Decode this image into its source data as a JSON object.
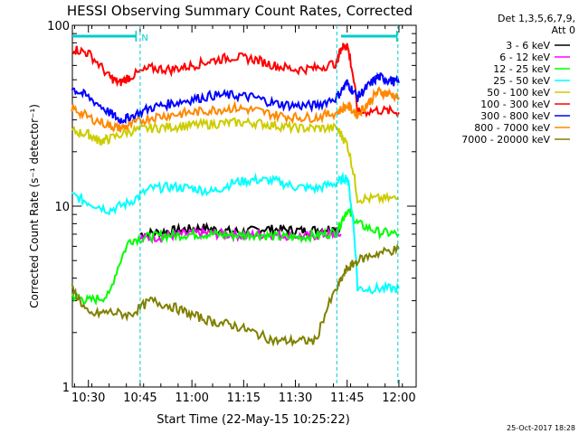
{
  "chart_data": {
    "type": "line",
    "title": "HESSI Observing Summary Count Rates, Corrected",
    "xlabel": "Start Time (22-May-15 10:25:22)",
    "ylabel": "Corrected Count Rate (s⁻¹ detector⁻¹)",
    "xlim": [
      10.4225,
      12.0833
    ],
    "ylim": [
      1,
      100
    ],
    "yscale": "log",
    "x_ticks": [
      {
        "value": 10.5,
        "label": "10:30"
      },
      {
        "value": 10.75,
        "label": "10:45"
      },
      {
        "value": 11.0,
        "label": "11:00"
      },
      {
        "value": 11.25,
        "label": "11:15"
      },
      {
        "value": 11.5,
        "label": "11:30"
      },
      {
        "value": 11.75,
        "label": "11:45"
      },
      {
        "value": 12.0,
        "label": "12:00"
      }
    ],
    "y_ticks": [
      {
        "value": 1,
        "label": "1"
      },
      {
        "value": 10,
        "label": "10"
      },
      {
        "value": 100,
        "label": "100"
      }
    ],
    "legend_header": [
      "Det 1,3,5,6,7,9,",
      "Att 0"
    ],
    "legend_position": "right",
    "night_markers": [
      10.75,
      11.7,
      11.995
    ],
    "flag_bars": [
      {
        "start": 10.4225,
        "end": 10.73,
        "label": "N"
      },
      {
        "start": 11.72,
        "end": 11.99,
        "label": ""
      }
    ],
    "series": [
      {
        "name": "3 - 6 keV",
        "color": "#000000",
        "x": [
          10.75,
          10.85,
          10.95,
          11.05,
          11.15,
          11.25,
          11.35,
          11.45,
          11.55,
          11.65,
          11.72
        ],
        "y": [
          7.0,
          7.2,
          7.4,
          7.6,
          7.3,
          7.2,
          7.5,
          7.4,
          7.3,
          7.5,
          7.6
        ]
      },
      {
        "name": "6 - 12 keV",
        "color": "#ff00ff",
        "x": [
          10.75,
          10.85,
          10.95,
          11.05,
          11.15,
          11.25,
          11.35,
          11.45,
          11.55,
          11.65,
          11.72
        ],
        "y": [
          6.6,
          6.8,
          7.0,
          7.1,
          7.0,
          6.9,
          7.0,
          6.9,
          6.8,
          7.0,
          7.0
        ]
      },
      {
        "name": "12 - 25 keV",
        "color": "#00ff00",
        "x": [
          10.42,
          10.5,
          10.6,
          10.7,
          10.8,
          10.9,
          11.0,
          11.1,
          11.2,
          11.3,
          11.4,
          11.5,
          11.6,
          11.7,
          11.75,
          11.8,
          11.9,
          12.0
        ],
        "y": [
          3.2,
          3.0,
          3.2,
          6.5,
          6.8,
          6.9,
          7.0,
          7.0,
          6.9,
          7.0,
          6.8,
          6.7,
          6.9,
          7.2,
          9.5,
          8.0,
          7.2,
          7.0
        ]
      },
      {
        "name": "25 - 50 keV",
        "color": "#00ffff",
        "x": [
          10.42,
          10.5,
          10.6,
          10.7,
          10.8,
          10.9,
          11.0,
          11.1,
          11.2,
          11.3,
          11.4,
          11.5,
          11.6,
          11.7,
          11.75,
          11.8,
          11.9,
          12.0
        ],
        "y": [
          11.5,
          10.5,
          9.5,
          10.5,
          12.5,
          12.8,
          12.6,
          12.0,
          13.5,
          14.0,
          13.8,
          12.8,
          12.5,
          13.5,
          14.5,
          3.5,
          3.5,
          3.5
        ]
      },
      {
        "name": "50 - 100 keV",
        "color": "#cccc00",
        "x": [
          10.42,
          10.5,
          10.55,
          10.6,
          10.7,
          10.8,
          10.9,
          11.0,
          11.1,
          11.2,
          11.3,
          11.4,
          11.5,
          11.6,
          11.7,
          11.75,
          11.8,
          11.9,
          12.0
        ],
        "y": [
          26.0,
          25.0,
          23.0,
          23.5,
          26.0,
          27.0,
          27.5,
          28.0,
          28.5,
          29.0,
          29.0,
          28.0,
          27.0,
          27.0,
          27.0,
          22.0,
          11.0,
          11.0,
          11.0
        ]
      },
      {
        "name": "100 - 300 keV",
        "color": "#ff0000",
        "x": [
          10.42,
          10.5,
          10.6,
          10.65,
          10.7,
          10.8,
          10.9,
          11.0,
          11.1,
          11.2,
          11.3,
          11.4,
          11.5,
          11.6,
          11.7,
          11.72,
          11.75,
          11.8,
          11.9,
          12.0
        ],
        "y": [
          75.0,
          70.0,
          52.0,
          48.0,
          52.0,
          58.0,
          57.0,
          60.0,
          64.0,
          67.0,
          65.0,
          60.0,
          57.0,
          58.0,
          62.0,
          75.0,
          78.0,
          33.0,
          34.0,
          33.0
        ]
      },
      {
        "name": "300 - 800 keV",
        "color": "#0000ff",
        "x": [
          10.42,
          10.5,
          10.6,
          10.65,
          10.7,
          10.8,
          10.9,
          11.0,
          11.1,
          11.2,
          11.3,
          11.4,
          11.5,
          11.6,
          11.7,
          11.75,
          11.8,
          11.85,
          11.9,
          11.95,
          12.0
        ],
        "y": [
          45.0,
          40.0,
          33.0,
          30.0,
          31.0,
          35.0,
          37.0,
          39.0,
          41.0,
          41.0,
          40.0,
          37.0,
          36.0,
          36.0,
          40.0,
          48.0,
          40.0,
          46.0,
          52.0,
          50.0,
          48.0
        ]
      },
      {
        "name": "800 - 7000 keV",
        "color": "#ff8800",
        "x": [
          10.42,
          10.5,
          10.6,
          10.65,
          10.7,
          10.8,
          10.9,
          11.0,
          11.1,
          11.2,
          11.3,
          11.4,
          11.5,
          11.6,
          11.7,
          11.75,
          11.8,
          11.85,
          11.9,
          11.95,
          12.0
        ],
        "y": [
          35.0,
          31.0,
          28.0,
          27.0,
          28.0,
          31.0,
          32.0,
          33.0,
          34.0,
          35.0,
          34.0,
          32.0,
          31.0,
          31.0,
          33.0,
          36.0,
          32.0,
          37.0,
          43.0,
          42.0,
          40.0
        ]
      },
      {
        "name": "7000 - 20000 keV",
        "color": "#808000",
        "x": [
          10.42,
          10.5,
          10.6,
          10.7,
          10.8,
          10.9,
          11.0,
          11.1,
          11.2,
          11.3,
          11.4,
          11.5,
          11.6,
          11.7,
          11.75,
          11.8,
          11.9,
          12.0
        ],
        "y": [
          3.5,
          2.5,
          2.6,
          2.5,
          3.0,
          2.8,
          2.5,
          2.3,
          2.2,
          2.0,
          1.8,
          1.8,
          1.8,
          3.5,
          4.5,
          5.0,
          5.5,
          5.8
        ]
      }
    ]
  },
  "footer": {
    "timestamp": "25-Oct-2017 18:28"
  }
}
